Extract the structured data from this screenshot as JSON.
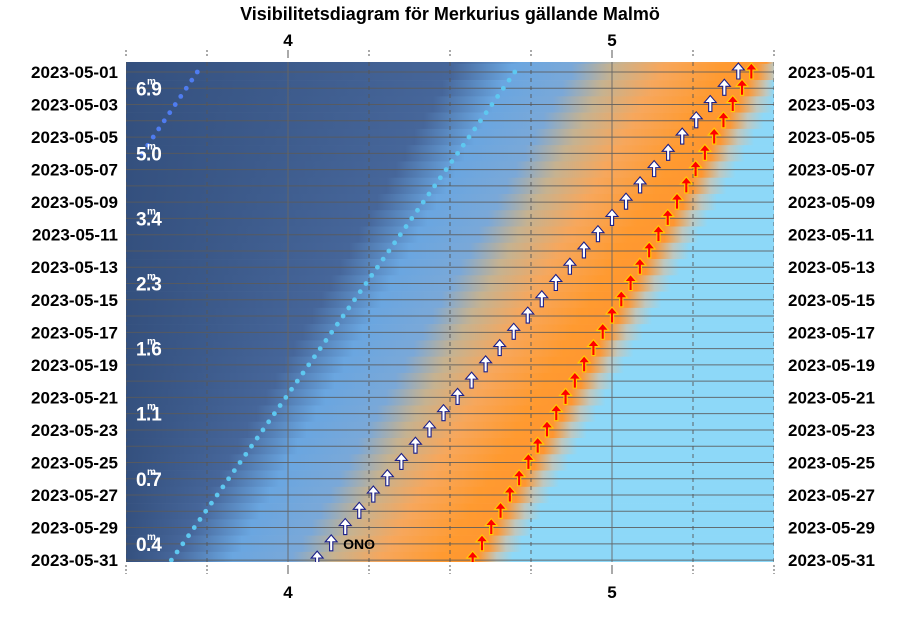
{
  "chart_data": {
    "type": "visibility-diagram",
    "title": "Visibilitetsdiagram för Merkurius gällande Malmö",
    "x_ticks": [
      4,
      5
    ],
    "xlim": [
      3.5,
      5.5
    ],
    "dates": [
      "2023-05-01",
      "2023-05-03",
      "2023-05-05",
      "2023-05-07",
      "2023-05-09",
      "2023-05-11",
      "2023-05-13",
      "2023-05-15",
      "2023-05-17",
      "2023-05-19",
      "2023-05-21",
      "2023-05-23",
      "2023-05-25",
      "2023-05-27",
      "2023-05-29",
      "2023-05-31"
    ],
    "magnitude_labels": [
      {
        "date": "2023-05-02",
        "value": "6.9"
      },
      {
        "date": "2023-05-06",
        "value": "5.0"
      },
      {
        "date": "2023-05-10",
        "value": "3.4"
      },
      {
        "date": "2023-05-14",
        "value": "2.3"
      },
      {
        "date": "2023-05-18",
        "value": "1.6"
      },
      {
        "date": "2023-05-22",
        "value": "1.1"
      },
      {
        "date": "2023-05-26",
        "value": "0.7"
      },
      {
        "date": "2023-05-30",
        "value": "0.4"
      }
    ],
    "magnitude_unit": "m",
    "series": [
      {
        "kind": "sunrise",
        "color": "#ff0000",
        "start": {
          "date": "2023-05-01",
          "x": 5.43
        },
        "end": {
          "date": "2023-05-31",
          "x": 4.57
        }
      },
      {
        "kind": "mercury-rise",
        "color": "#ffffff",
        "start": {
          "date": "2023-05-01",
          "x": 5.39
        },
        "end": {
          "date": "2023-05-31",
          "x": 4.09
        }
      },
      {
        "kind": "dotted-track-1",
        "color": "#5ec8f0",
        "start": {
          "date": "2023-05-01",
          "x": 4.7
        },
        "end": {
          "date": "2023-05-31",
          "x": 3.64
        }
      },
      {
        "kind": "dotted-track-2",
        "color": "#4f7cf0",
        "start": {
          "date": "2023-05-01",
          "x": 3.72
        },
        "end": {
          "date": "2023-05-06",
          "x": 3.55
        }
      }
    ],
    "direction_label": "ONO",
    "colors": {
      "sky_night": "#34507e",
      "twilight": "#6aa6e0",
      "dawn": "#ff9a30",
      "day": "#8dd8f8"
    }
  }
}
